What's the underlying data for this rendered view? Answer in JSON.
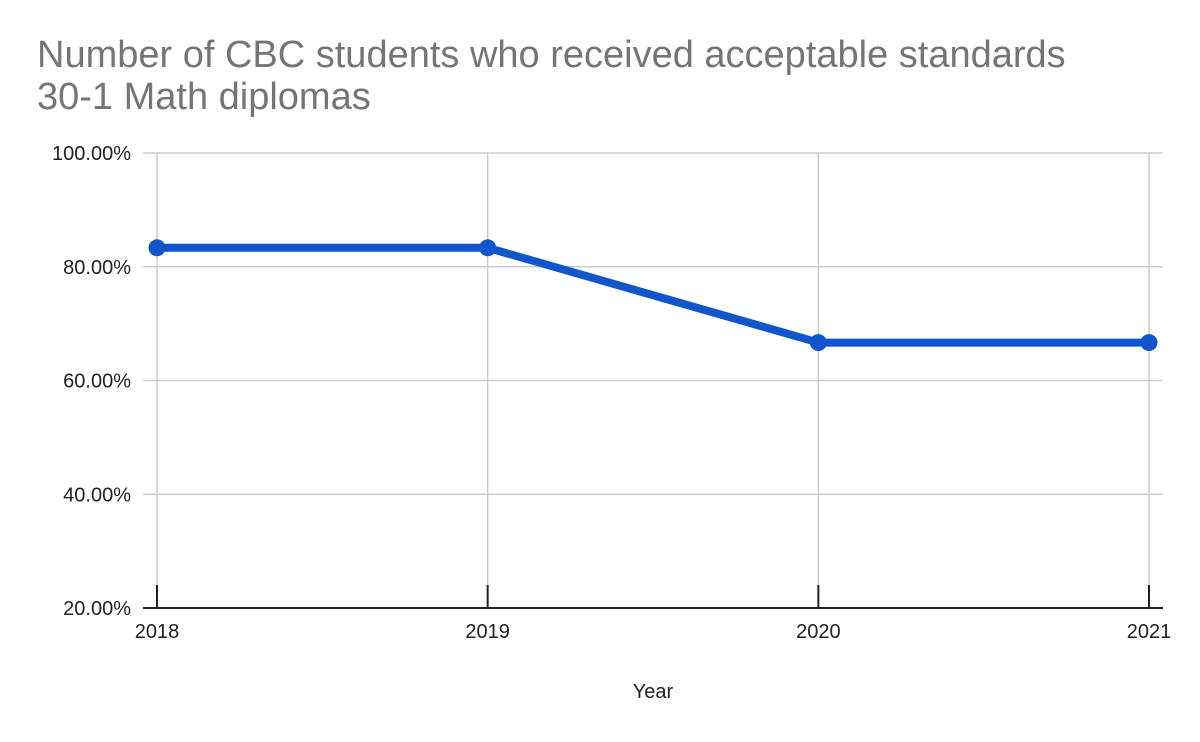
{
  "chart_data": {
    "type": "line",
    "title_lines": [
      "Number of CBC students who received acceptable standards",
      "30-1 Math diplomas"
    ],
    "xlabel": "Year",
    "ylabel": "",
    "categories": [
      "2018",
      "2019",
      "2020",
      "2021"
    ],
    "series": [
      {
        "values": [
          83.33,
          83.33,
          66.67,
          66.67
        ]
      }
    ],
    "ylim": [
      20,
      100
    ],
    "yticks": [
      20,
      40,
      60,
      80,
      100
    ],
    "ytick_labels": [
      "20.00%",
      "40.00%",
      "60.00%",
      "80.00%",
      "100.00%"
    ],
    "grid": true,
    "legend": "none",
    "colors": {
      "line": "#1155cc",
      "grid": "#cccccc",
      "axis": "#222222",
      "title": "#757575"
    }
  }
}
